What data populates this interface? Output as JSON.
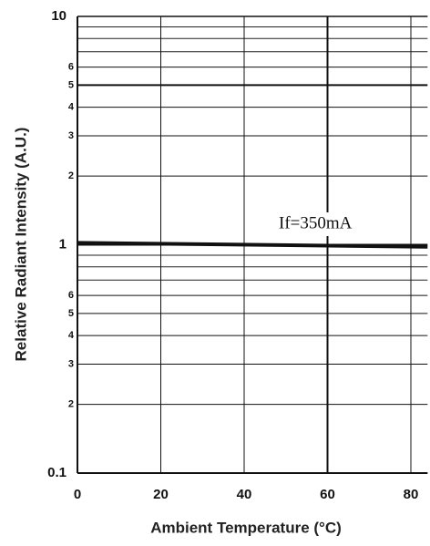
{
  "chart_data": {
    "type": "line",
    "x_label": "Ambient Temperature (°C)",
    "y_label": "Relative Radiant Intensity (A.U.)",
    "annotation": "If=350mA",
    "xlim": [
      0,
      84
    ],
    "xticks": [
      0,
      20,
      40,
      60,
      80
    ],
    "ylim": [
      0.1,
      10
    ],
    "log_y": true,
    "yticks": [
      0.1,
      {
        "value": 0.2,
        "label": "2"
      },
      {
        "value": 0.3,
        "label": "3"
      },
      {
        "value": 0.4,
        "label": "4"
      },
      {
        "value": 0.5,
        "label": "5"
      },
      {
        "value": 0.6,
        "label": "6"
      },
      1,
      {
        "value": 2,
        "label": "2"
      },
      {
        "value": 3,
        "label": "3"
      },
      {
        "value": 4,
        "label": "4"
      },
      {
        "value": 5,
        "label": "5"
      },
      {
        "value": 6,
        "label": "6"
      },
      10
    ],
    "minor_yticks": [
      0.7,
      0.8,
      0.9,
      7,
      8,
      9
    ],
    "grid": true,
    "series": [
      {
        "color": "#111111",
        "x": [
          0,
          84
        ],
        "values": [
          1.02,
          0.98
        ]
      }
    ]
  }
}
